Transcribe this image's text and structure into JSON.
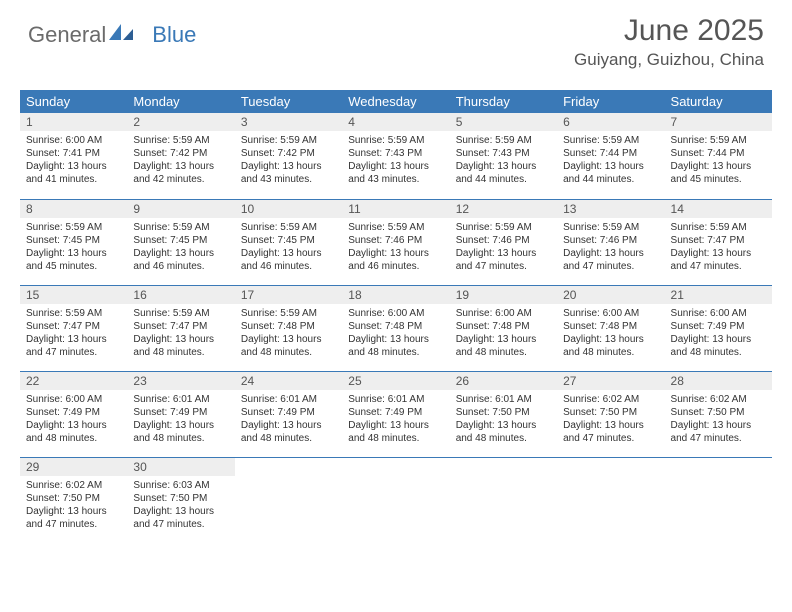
{
  "logo": {
    "text1": "General",
    "text2": "Blue"
  },
  "title": "June 2025",
  "location": "Guiyang, Guizhou, China",
  "colors": {
    "header_bg": "#3a79b7",
    "header_text": "#ffffff",
    "daynum_bg": "#eeeeee",
    "row_border": "#3a79b7",
    "body_text": "#333333",
    "title_text": "#555555"
  },
  "weekdays": [
    "Sunday",
    "Monday",
    "Tuesday",
    "Wednesday",
    "Thursday",
    "Friday",
    "Saturday"
  ],
  "days": [
    {
      "n": 1,
      "sunrise": "6:00 AM",
      "sunset": "7:41 PM",
      "daylight": "13 hours and 41 minutes."
    },
    {
      "n": 2,
      "sunrise": "5:59 AM",
      "sunset": "7:42 PM",
      "daylight": "13 hours and 42 minutes."
    },
    {
      "n": 3,
      "sunrise": "5:59 AM",
      "sunset": "7:42 PM",
      "daylight": "13 hours and 43 minutes."
    },
    {
      "n": 4,
      "sunrise": "5:59 AM",
      "sunset": "7:43 PM",
      "daylight": "13 hours and 43 minutes."
    },
    {
      "n": 5,
      "sunrise": "5:59 AM",
      "sunset": "7:43 PM",
      "daylight": "13 hours and 44 minutes."
    },
    {
      "n": 6,
      "sunrise": "5:59 AM",
      "sunset": "7:44 PM",
      "daylight": "13 hours and 44 minutes."
    },
    {
      "n": 7,
      "sunrise": "5:59 AM",
      "sunset": "7:44 PM",
      "daylight": "13 hours and 45 minutes."
    },
    {
      "n": 8,
      "sunrise": "5:59 AM",
      "sunset": "7:45 PM",
      "daylight": "13 hours and 45 minutes."
    },
    {
      "n": 9,
      "sunrise": "5:59 AM",
      "sunset": "7:45 PM",
      "daylight": "13 hours and 46 minutes."
    },
    {
      "n": 10,
      "sunrise": "5:59 AM",
      "sunset": "7:45 PM",
      "daylight": "13 hours and 46 minutes."
    },
    {
      "n": 11,
      "sunrise": "5:59 AM",
      "sunset": "7:46 PM",
      "daylight": "13 hours and 46 minutes."
    },
    {
      "n": 12,
      "sunrise": "5:59 AM",
      "sunset": "7:46 PM",
      "daylight": "13 hours and 47 minutes."
    },
    {
      "n": 13,
      "sunrise": "5:59 AM",
      "sunset": "7:46 PM",
      "daylight": "13 hours and 47 minutes."
    },
    {
      "n": 14,
      "sunrise": "5:59 AM",
      "sunset": "7:47 PM",
      "daylight": "13 hours and 47 minutes."
    },
    {
      "n": 15,
      "sunrise": "5:59 AM",
      "sunset": "7:47 PM",
      "daylight": "13 hours and 47 minutes."
    },
    {
      "n": 16,
      "sunrise": "5:59 AM",
      "sunset": "7:47 PM",
      "daylight": "13 hours and 48 minutes."
    },
    {
      "n": 17,
      "sunrise": "5:59 AM",
      "sunset": "7:48 PM",
      "daylight": "13 hours and 48 minutes."
    },
    {
      "n": 18,
      "sunrise": "6:00 AM",
      "sunset": "7:48 PM",
      "daylight": "13 hours and 48 minutes."
    },
    {
      "n": 19,
      "sunrise": "6:00 AM",
      "sunset": "7:48 PM",
      "daylight": "13 hours and 48 minutes."
    },
    {
      "n": 20,
      "sunrise": "6:00 AM",
      "sunset": "7:48 PM",
      "daylight": "13 hours and 48 minutes."
    },
    {
      "n": 21,
      "sunrise": "6:00 AM",
      "sunset": "7:49 PM",
      "daylight": "13 hours and 48 minutes."
    },
    {
      "n": 22,
      "sunrise": "6:00 AM",
      "sunset": "7:49 PM",
      "daylight": "13 hours and 48 minutes."
    },
    {
      "n": 23,
      "sunrise": "6:01 AM",
      "sunset": "7:49 PM",
      "daylight": "13 hours and 48 minutes."
    },
    {
      "n": 24,
      "sunrise": "6:01 AM",
      "sunset": "7:49 PM",
      "daylight": "13 hours and 48 minutes."
    },
    {
      "n": 25,
      "sunrise": "6:01 AM",
      "sunset": "7:49 PM",
      "daylight": "13 hours and 48 minutes."
    },
    {
      "n": 26,
      "sunrise": "6:01 AM",
      "sunset": "7:50 PM",
      "daylight": "13 hours and 48 minutes."
    },
    {
      "n": 27,
      "sunrise": "6:02 AM",
      "sunset": "7:50 PM",
      "daylight": "13 hours and 47 minutes."
    },
    {
      "n": 28,
      "sunrise": "6:02 AM",
      "sunset": "7:50 PM",
      "daylight": "13 hours and 47 minutes."
    },
    {
      "n": 29,
      "sunrise": "6:02 AM",
      "sunset": "7:50 PM",
      "daylight": "13 hours and 47 minutes."
    },
    {
      "n": 30,
      "sunrise": "6:03 AM",
      "sunset": "7:50 PM",
      "daylight": "13 hours and 47 minutes."
    }
  ],
  "labels": {
    "sunrise": "Sunrise:",
    "sunset": "Sunset:",
    "daylight": "Daylight:"
  },
  "first_weekday_index": 0,
  "total_cells": 35
}
